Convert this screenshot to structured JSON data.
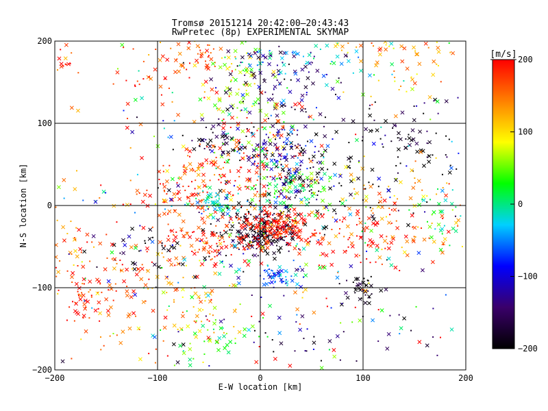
{
  "chart_data": {
    "type": "scatter",
    "title": "Tromsø 20151214 20:42:00–20:43:43",
    "subtitle": "RwPretec (8p) EXPERIMENTAL SKYMAP",
    "xlabel": "E-W location [km]",
    "ylabel": "N-S location [km]",
    "xlim": [
      -200,
      200
    ],
    "ylim": [
      -200,
      200
    ],
    "xticks": [
      -200,
      -100,
      0,
      100,
      200
    ],
    "yticks": [
      -200,
      -100,
      0,
      100,
      200
    ],
    "xtick_labels": [
      "−200",
      "−100",
      "0",
      "100",
      "200"
    ],
    "ytick_labels": [
      "−200",
      "−100",
      "0",
      "100",
      "200"
    ],
    "grid": true,
    "colorbar": {
      "label": "[m/s]",
      "range": [
        -200,
        200
      ],
      "ticks": [
        200,
        100,
        0,
        -100,
        -200
      ],
      "tick_labels": [
        "200",
        "100",
        "0",
        "−100",
        "−200"
      ],
      "colormap": [
        "#000000",
        "#3a006a",
        "#0000ff",
        "#00d0ff",
        "#00ff00",
        "#ffff00",
        "#ff8000",
        "#ff0000"
      ]
    },
    "marker_types": [
      "x",
      "dot"
    ],
    "clusters": [
      {
        "x": -60,
        "y": 180,
        "sx": 18,
        "sy": 12,
        "v": 160,
        "n": 60
      },
      {
        "x": -20,
        "y": 140,
        "sx": 20,
        "sy": 30,
        "v": 60,
        "n": 90
      },
      {
        "x": 20,
        "y": 150,
        "sx": 30,
        "sy": 25,
        "v": -150,
        "n": 90
      },
      {
        "x": 40,
        "y": 175,
        "sx": 40,
        "sy": 15,
        "v": -30,
        "n": 50
      },
      {
        "x": 110,
        "y": 190,
        "sx": 30,
        "sy": 8,
        "v": 120,
        "n": 25
      },
      {
        "x": 150,
        "y": 160,
        "sx": 25,
        "sy": 25,
        "v": 120,
        "n": 40
      },
      {
        "x": -120,
        "y": 140,
        "sx": 30,
        "sy": 20,
        "v": 180,
        "n": 30
      },
      {
        "x": -190,
        "y": 180,
        "sx": 8,
        "sy": 15,
        "v": 190,
        "n": 15
      },
      {
        "x": -10,
        "y": 60,
        "sx": 25,
        "sy": 35,
        "v": 190,
        "n": 120
      },
      {
        "x": 20,
        "y": 60,
        "sx": 20,
        "sy": 30,
        "v": -120,
        "n": 110
      },
      {
        "x": 40,
        "y": 40,
        "sx": 20,
        "sy": 25,
        "v": -200,
        "n": 60
      },
      {
        "x": -40,
        "y": 75,
        "sx": 12,
        "sy": 10,
        "v": -180,
        "n": 40
      },
      {
        "x": 120,
        "y": 55,
        "sx": 40,
        "sy": 30,
        "v": -200,
        "n": 70
      },
      {
        "x": 170,
        "y": 70,
        "sx": 20,
        "sy": 30,
        "v": -180,
        "n": 30
      },
      {
        "x": -80,
        "y": 15,
        "sx": 30,
        "sy": 15,
        "v": 180,
        "n": 70
      },
      {
        "x": -45,
        "y": 5,
        "sx": 10,
        "sy": 8,
        "v": -20,
        "n": 60
      },
      {
        "x": -60,
        "y": 45,
        "sx": 15,
        "sy": 15,
        "v": 160,
        "n": 40
      },
      {
        "x": 30,
        "y": 25,
        "sx": 25,
        "sy": 15,
        "v": 20,
        "n": 80
      },
      {
        "x": 110,
        "y": 10,
        "sx": 40,
        "sy": 20,
        "v": 110,
        "n": 50
      },
      {
        "x": 0,
        "y": -30,
        "sx": 20,
        "sy": 15,
        "v": -190,
        "n": 220
      },
      {
        "x": 20,
        "y": -25,
        "sx": 18,
        "sy": 10,
        "v": 200,
        "n": 180
      },
      {
        "x": -50,
        "y": -45,
        "sx": 30,
        "sy": 20,
        "v": 180,
        "n": 120
      },
      {
        "x": -110,
        "y": -60,
        "sx": 25,
        "sy": 15,
        "v": -190,
        "n": 30
      },
      {
        "x": 100,
        "y": -40,
        "sx": 25,
        "sy": 20,
        "v": 200,
        "n": 60
      },
      {
        "x": 150,
        "y": -30,
        "sx": 30,
        "sy": 25,
        "v": 160,
        "n": 60
      },
      {
        "x": 180,
        "y": -20,
        "sx": 15,
        "sy": 20,
        "v": 10,
        "n": 30
      },
      {
        "x": -140,
        "y": -80,
        "sx": 30,
        "sy": 30,
        "v": 170,
        "n": 80
      },
      {
        "x": -190,
        "y": -40,
        "sx": 10,
        "sy": 40,
        "v": 150,
        "n": 30
      },
      {
        "x": 20,
        "y": -85,
        "sx": 10,
        "sy": 8,
        "v": -60,
        "n": 60
      },
      {
        "x": 100,
        "y": -105,
        "sx": 10,
        "sy": 10,
        "v": -200,
        "n": 35
      },
      {
        "x": -70,
        "y": -120,
        "sx": 25,
        "sy": 25,
        "v": 120,
        "n": 60
      },
      {
        "x": -50,
        "y": -160,
        "sx": 20,
        "sy": 15,
        "v": 30,
        "n": 40
      },
      {
        "x": -120,
        "y": -150,
        "sx": 40,
        "sy": 30,
        "v": 160,
        "n": 30
      },
      {
        "x": 60,
        "y": -150,
        "sx": 60,
        "sy": 30,
        "v": -150,
        "n": 40
      },
      {
        "x": -170,
        "y": -110,
        "sx": 15,
        "sy": 15,
        "v": 180,
        "n": 30
      },
      {
        "x": 0,
        "y": 0,
        "sx": 110,
        "sy": 110,
        "v": 0,
        "n": 450,
        "vs": 140
      }
    ]
  }
}
